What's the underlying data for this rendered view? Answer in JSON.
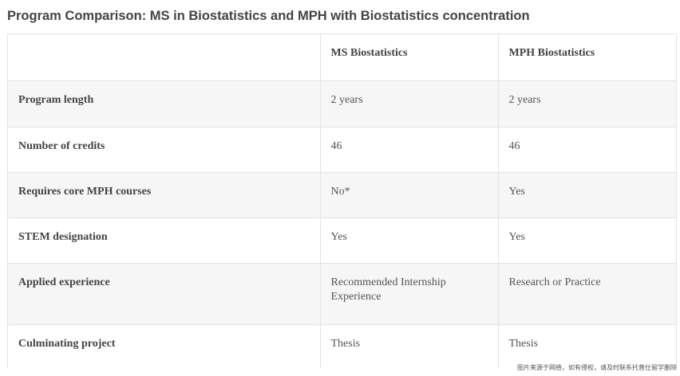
{
  "title": "Program Comparison: MS in Biostatistics and MPH with Biostatistics concentration",
  "table": {
    "headers": [
      "",
      "MS Biostatistics",
      "MPH Biostatistics"
    ],
    "rows": [
      {
        "label": "Program length",
        "ms": "2 years",
        "mph": "2 years"
      },
      {
        "label": "Number of credits",
        "ms": "46",
        "mph": "46"
      },
      {
        "label": "Requires core MPH courses",
        "ms": "No*",
        "mph": "Yes"
      },
      {
        "label": "STEM designation",
        "ms": "Yes",
        "mph": "Yes"
      },
      {
        "label": "Applied experience",
        "ms": "Recommended Internship Experience",
        "mph": "Research or Practice"
      },
      {
        "label": "Culminating project",
        "ms": "Thesis",
        "mph": "Thesis"
      }
    ]
  },
  "watermark": "图片来源于网络，如有侵权，请及时联系托普仕留学删除"
}
